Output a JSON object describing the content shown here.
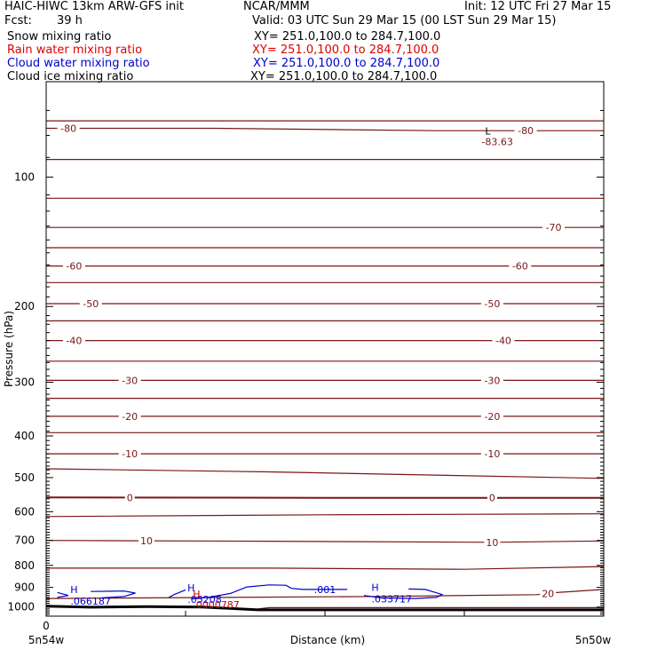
{
  "header": {
    "model": "HAIC-HIWC 13km ARW-GFS init",
    "org": "NCAR/MMM",
    "init": "Init: 12 UTC Fri 27 Mar 15",
    "fcst_label": "Fcst:",
    "fcst_value": "39 h",
    "valid": "Valid: 03 UTC Sun 29 Mar 15 (00 LST Sun 29 Mar 15)"
  },
  "fields": [
    {
      "name": "Snow mixing ratio",
      "xy": "XY= 251.0,100.0 to 284.7,100.0",
      "color": "#000000"
    },
    {
      "name": "Rain water mixing ratio",
      "xy": "XY= 251.0,100.0 to 284.7,100.0",
      "color": "#e00000"
    },
    {
      "name": "Cloud water mixing ratio",
      "xy": "XY= 251.0,100.0 to 284.7,100.0",
      "color": "#0000cc"
    },
    {
      "name": "Cloud ice mixing ratio",
      "xy": "XY= 251.0,100.0 to 284.7,100.0",
      "color": "#000000"
    }
  ],
  "colors": {
    "temperature": "#7a1515",
    "cloud_water": "#0000cc",
    "rain_water": "#cc0000",
    "terrain": "#000000",
    "axes": "#000000"
  },
  "chart_data": {
    "type": "contour",
    "title": "",
    "xlabel": "Distance (km)",
    "ylabel": "Pressure (hPa)",
    "y_axis": {
      "scale": "log",
      "reversed": true,
      "range": [
        60,
        1050
      ],
      "ticks": [
        100,
        200,
        300,
        400,
        500,
        600,
        700,
        800,
        900,
        1000
      ],
      "tick_labels": [
        "100",
        "200",
        "300",
        "400",
        "500",
        "600",
        "700",
        "800",
        "900",
        "1000"
      ]
    },
    "x_axis": {
      "range": [
        0,
        100
      ],
      "ticks": [
        0,
        25,
        50,
        75,
        100
      ],
      "zero_label": "0",
      "left_label": "5n54w",
      "right_label": "5n50w"
    },
    "temperature_contours": [
      {
        "level": -80,
        "label": "-80",
        "points": [
          [
            0,
            74
          ],
          [
            100,
            74
          ]
        ]
      },
      {
        "level": -80,
        "label": "-80",
        "points": [
          [
            0,
            77
          ],
          [
            30,
            77
          ],
          [
            70,
            78
          ],
          [
            100,
            78
          ]
        ],
        "labels_at": [
          4,
          86
        ]
      },
      {
        "level": -80,
        "label": "",
        "points": [
          [
            0,
            91
          ],
          [
            100,
            91
          ]
        ]
      },
      {
        "level": -80,
        "label": "",
        "points": [
          [
            0,
            112
          ],
          [
            100,
            112
          ]
        ]
      },
      {
        "level": -70,
        "label": "-70",
        "points": [
          [
            0,
            131
          ],
          [
            50,
            131
          ],
          [
            100,
            131
          ]
        ],
        "labels_at": [
          91
        ]
      },
      {
        "level": -60,
        "label": "-60",
        "points": [
          [
            0,
            161
          ],
          [
            100,
            161
          ]
        ],
        "labels_at": [
          5,
          85
        ]
      },
      {
        "level": -60,
        "label": "",
        "points": [
          [
            0,
            146
          ],
          [
            100,
            146
          ]
        ]
      },
      {
        "level": -55,
        "label": "",
        "points": [
          [
            0,
            176
          ],
          [
            100,
            176
          ]
        ]
      },
      {
        "level": -50,
        "label": "-50",
        "points": [
          [
            0,
            197
          ],
          [
            100,
            197
          ]
        ],
        "labels_at": [
          8,
          80
        ]
      },
      {
        "level": -45,
        "label": "",
        "points": [
          [
            0,
            216
          ],
          [
            100,
            216
          ]
        ]
      },
      {
        "level": -40,
        "label": "-40",
        "points": [
          [
            0,
            240
          ],
          [
            100,
            240
          ]
        ],
        "labels_at": [
          5,
          82
        ]
      },
      {
        "level": -35,
        "label": "",
        "points": [
          [
            0,
            268
          ],
          [
            100,
            268
          ]
        ]
      },
      {
        "level": -30,
        "label": "-30",
        "points": [
          [
            0,
            297
          ],
          [
            100,
            297
          ]
        ],
        "labels_at": [
          15,
          80
        ]
      },
      {
        "level": -25,
        "label": "",
        "points": [
          [
            0,
            327
          ],
          [
            100,
            327
          ]
        ]
      },
      {
        "level": -20,
        "label": "-20",
        "points": [
          [
            0,
            360
          ],
          [
            100,
            360
          ]
        ],
        "labels_at": [
          15,
          80
        ]
      },
      {
        "level": -15,
        "label": "",
        "points": [
          [
            0,
            393
          ],
          [
            100,
            393
          ]
        ]
      },
      {
        "level": -10,
        "label": "-10",
        "points": [
          [
            0,
            440
          ],
          [
            100,
            440
          ]
        ],
        "labels_at": [
          15,
          80
        ]
      },
      {
        "level": -5,
        "label": "",
        "points": [
          [
            0,
            477
          ],
          [
            40,
            485
          ],
          [
            100,
            502
          ]
        ]
      },
      {
        "level": 0,
        "label": "0",
        "points": [
          [
            0,
            556
          ],
          [
            50,
            557
          ],
          [
            100,
            557
          ]
        ],
        "labels_at": [
          15,
          80
        ]
      },
      {
        "level": 5,
        "label": "",
        "points": [
          [
            0,
            616
          ],
          [
            50,
            610
          ],
          [
            100,
            607
          ]
        ]
      },
      {
        "level": 10,
        "label": "10",
        "points": [
          [
            0,
            700
          ],
          [
            40,
            703
          ],
          [
            80,
            707
          ],
          [
            100,
            702
          ]
        ],
        "labels_at": [
          18,
          80
        ]
      },
      {
        "level": 15,
        "label": "",
        "points": [
          [
            0,
            812
          ],
          [
            40,
            812
          ],
          [
            75,
            817
          ],
          [
            100,
            805
          ]
        ]
      },
      {
        "level": 20,
        "label": "20",
        "points": [
          [
            0,
            955
          ],
          [
            60,
            945
          ],
          [
            88,
            936
          ],
          [
            91,
            926
          ],
          [
            100,
            910
          ]
        ],
        "labels_at": [
          90
        ]
      },
      {
        "level": 25,
        "label": "",
        "points": [
          [
            38,
            1010
          ],
          [
            40,
            1003
          ],
          [
            100,
            1003
          ]
        ]
      }
    ],
    "cloud_water": {
      "contour_label": ".001",
      "maxima": [
        {
          "label": "H",
          "value": ".066187",
          "x": 5,
          "p": 937
        },
        {
          "label": "H",
          "value": ".05208",
          "x": 26,
          "p": 928
        },
        {
          "label": "H",
          "value": ".033717",
          "x": 59,
          "p": 925
        }
      ]
    },
    "rain_water": {
      "maxima": [
        {
          "label": "H",
          "value": ".0000787",
          "x": 26,
          "p": 942
        }
      ]
    },
    "minimum": {
      "label": "L",
      "value": "-83.63",
      "x": 80,
      "p": 77
    },
    "terrain": {
      "points": [
        [
          0,
          995
        ],
        [
          8,
          1001
        ],
        [
          18,
          998
        ],
        [
          28,
          1000
        ],
        [
          38,
          1015
        ],
        [
          100,
          1015
        ]
      ]
    }
  }
}
